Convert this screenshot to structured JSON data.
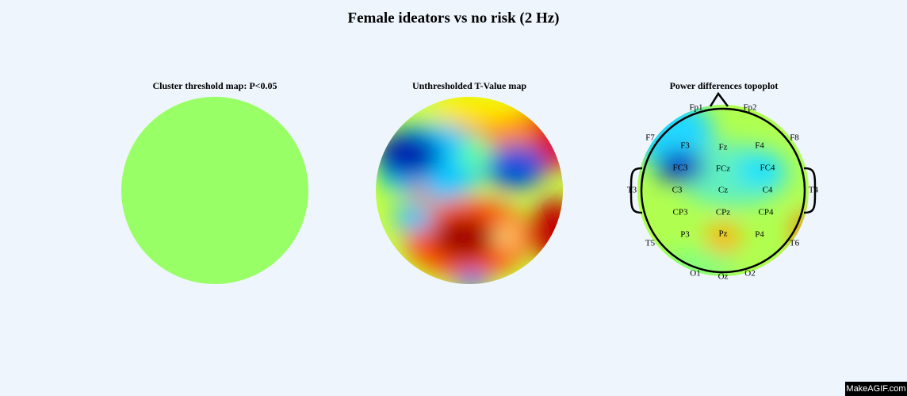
{
  "title": "Female ideators vs no risk (2 Hz)",
  "panels": [
    {
      "title": "Cluster threshold map: P<0.05"
    },
    {
      "title": "Unthresholded T-Value map"
    },
    {
      "title": "Power differences topoplot",
      "electrodes": [
        "Fp1",
        "Fp2",
        "F7",
        "F3",
        "Fz",
        "F4",
        "F8",
        "FC3",
        "FCz",
        "FC4",
        "T3",
        "C3",
        "Cz",
        "C4",
        "T4",
        "CP3",
        "CPz",
        "CP4",
        "T5",
        "P3",
        "Pz",
        "P4",
        "T6",
        "O1",
        "Oz",
        "O2"
      ]
    }
  ],
  "watermark": "MakeAGIF.com"
}
